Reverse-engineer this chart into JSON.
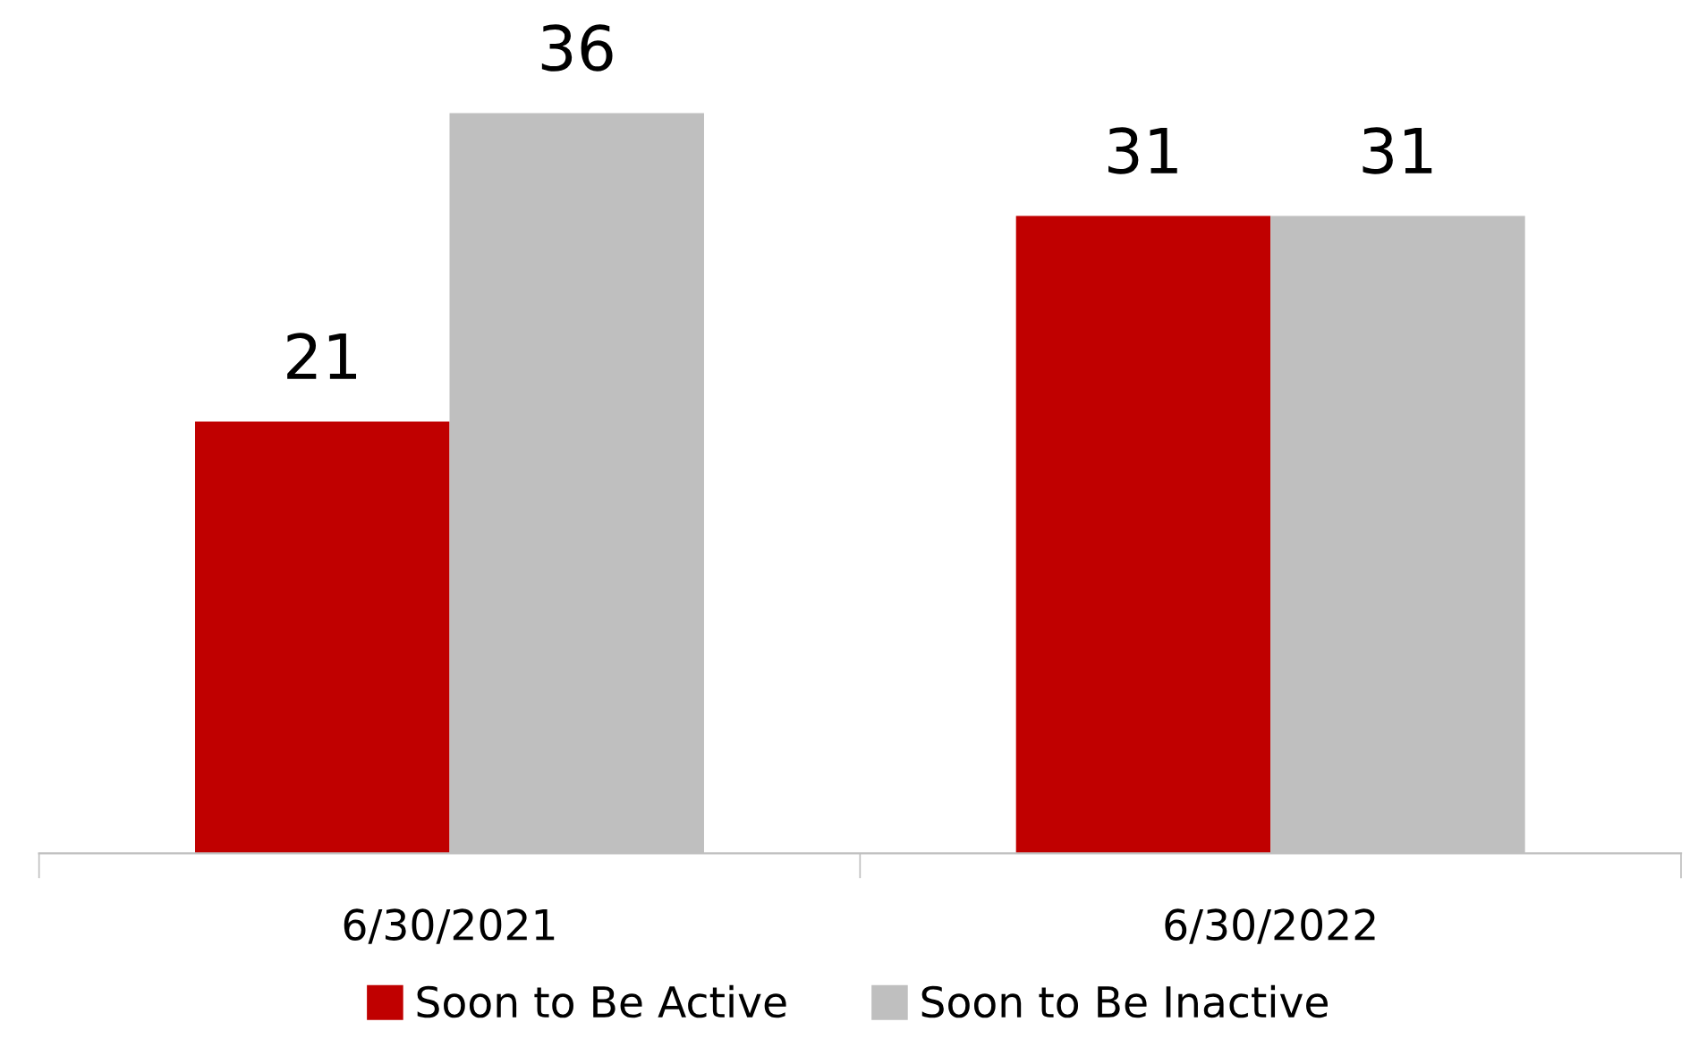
{
  "chart_data": {
    "type": "bar",
    "categories": [
      "6/30/2021",
      "6/30/2022"
    ],
    "series": [
      {
        "name": "Soon to Be Active",
        "color": "#c00000",
        "values": [
          21,
          31
        ]
      },
      {
        "name": "Soon to Be Inactive",
        "color": "#bfbfbf",
        "values": [
          36,
          31
        ]
      }
    ],
    "data_labels": true,
    "grid": false,
    "legend": "bottom"
  }
}
